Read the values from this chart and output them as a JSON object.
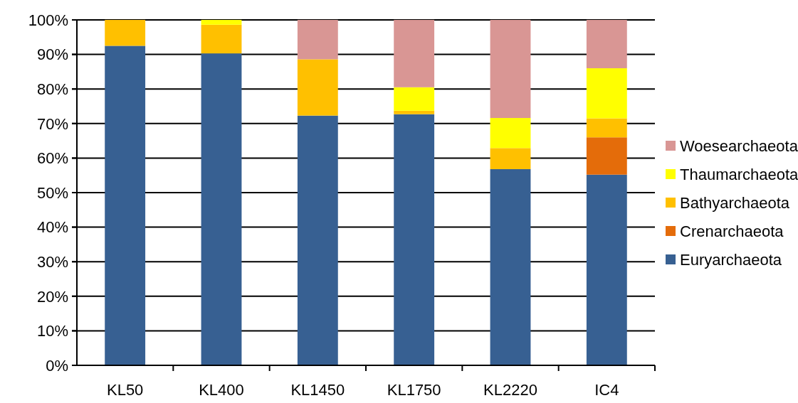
{
  "chart_data": {
    "type": "bar",
    "stacked": true,
    "categories": [
      "KL50",
      "KL400",
      "KL1450",
      "KL1750",
      "KL2220",
      "IC4"
    ],
    "series": [
      {
        "name": "Euryarchaeota",
        "color": "#376092",
        "values": [
          92.5,
          90.3,
          72.3,
          72.7,
          56.8,
          55.2
        ]
      },
      {
        "name": "Crenarchaeota",
        "color": "#e46c0a",
        "values": [
          0,
          0,
          0,
          0,
          0,
          10.8
        ]
      },
      {
        "name": "Bathyarchaeota",
        "color": "#ffc000",
        "values": [
          7.5,
          8.3,
          16.3,
          1.0,
          6.1,
          5.5
        ]
      },
      {
        "name": "Thaumarchaeota",
        "color": "#ffff00",
        "values": [
          0,
          1.4,
          0,
          6.8,
          8.7,
          14.5
        ]
      },
      {
        "name": "Woesearchaeota",
        "color": "#d99694",
        "values": [
          0,
          0,
          11.4,
          19.5,
          28.4,
          14.0
        ]
      }
    ],
    "ylim": [
      0,
      100
    ],
    "yticks": [
      {
        "value": 0,
        "label": "0%"
      },
      {
        "value": 10,
        "label": "10%"
      },
      {
        "value": 20,
        "label": "20%"
      },
      {
        "value": 30,
        "label": "30%"
      },
      {
        "value": 40,
        "label": "40%"
      },
      {
        "value": 50,
        "label": "50%"
      },
      {
        "value": 60,
        "label": "60%"
      },
      {
        "value": 70,
        "label": "70%"
      },
      {
        "value": 80,
        "label": "80%"
      },
      {
        "value": 90,
        "label": "90%"
      },
      {
        "value": 100,
        "label": "100%"
      }
    ],
    "grid": "y",
    "legend": "right"
  }
}
